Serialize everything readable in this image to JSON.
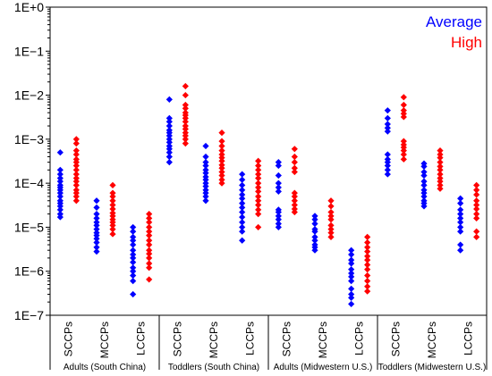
{
  "chart_data": {
    "type": "scatter",
    "title": "",
    "xlabel": "",
    "ylabel": "",
    "yscale": "log",
    "ylim": [
      1e-07,
      1
    ],
    "y_tick_labels": [
      "1E+0",
      "1E−1",
      "1E−2",
      "1E−3",
      "1E−4",
      "1E−5",
      "1E−6",
      "1E−7"
    ],
    "groups": [
      "Adults (South China)",
      "Toddlers (South China)",
      "Adults (Midwestern U.S.)",
      "Toddlers (Midwestern U.S.)"
    ],
    "categories": [
      "SCCPs",
      "MCCPs",
      "LCCPs"
    ],
    "legend": {
      "position": "top-right",
      "entries": [
        "Average",
        "High"
      ]
    },
    "colors": {
      "Average": "#0000ff",
      "High": "#ff0000"
    },
    "series": [
      {
        "name": "Average",
        "data": [
          {
            "group": 0,
            "category": 0,
            "values": [
              0.0005,
              0.0002,
              0.00016,
              0.00013,
              0.00011,
              9e-05,
              8e-05,
              7e-05,
              6e-05,
              5e-05,
              4e-05,
              3.5e-05,
              3e-05,
              2.5e-05,
              2e-05,
              1.7e-05
            ]
          },
          {
            "group": 0,
            "category": 1,
            "values": [
              4e-05,
              2.8e-05,
              2e-05,
              1.6e-05,
              1.3e-05,
              1.1e-05,
              9e-06,
              7.5e-06,
              6.5e-06,
              5.5e-06,
              4.5e-06,
              3.5e-06,
              2.8e-06
            ]
          },
          {
            "group": 0,
            "category": 2,
            "values": [
              1e-05,
              8e-06,
              6e-06,
              5e-06,
              4e-06,
              3e-06,
              2.4e-06,
              2e-06,
              1.6e-06,
              1.2e-06,
              1e-06,
              8e-07,
              6e-07,
              3e-07
            ]
          },
          {
            "group": 1,
            "category": 0,
            "values": [
              0.008,
              0.003,
              0.0025,
              0.002,
              0.0016,
              0.0014,
              0.0012,
              0.001,
              0.00085,
              0.0007,
              0.0006,
              0.0005,
              0.0004,
              0.0003
            ]
          },
          {
            "group": 1,
            "category": 1,
            "values": [
              0.0007,
              0.0004,
              0.0003,
              0.00025,
              0.0002,
              0.00017,
              0.00014,
              0.00012,
              0.0001,
              8.5e-05,
              7e-05,
              6e-05,
              5e-05,
              4e-05
            ]
          },
          {
            "group": 1,
            "category": 2,
            "values": [
              0.00016,
              0.00012,
              9e-05,
              7e-05,
              5.5e-05,
              4.5e-05,
              3.5e-05,
              2.8e-05,
              2.2e-05,
              1.7e-05,
              1.3e-05,
              1e-05,
              8e-06,
              5e-06
            ]
          },
          {
            "group": 2,
            "category": 0,
            "values": [
              0.0003,
              0.00025,
              0.00015,
              0.0001,
              8e-05,
              6.5e-05,
              2.5e-05,
              2.2e-05,
              1.8e-05,
              1.5e-05,
              1.2e-05,
              1e-05
            ]
          },
          {
            "group": 2,
            "category": 1,
            "values": [
              1.8e-05,
              1.5e-05,
              1.2e-05,
              9e-06,
              8e-06,
              6e-06,
              5e-06,
              4e-06,
              3.5e-06,
              3e-06
            ]
          },
          {
            "group": 2,
            "category": 2,
            "values": [
              3e-06,
              2.4e-06,
              1.8e-06,
              1.5e-06,
              1.1e-06,
              9e-07,
              7.5e-07,
              6e-07,
              4e-07,
              3e-07,
              2.5e-07,
              1.8e-07
            ]
          },
          {
            "group": 3,
            "category": 0,
            "values": [
              0.0045,
              0.003,
              0.0022,
              0.0018,
              0.0015,
              0.00045,
              0.00035,
              0.0003,
              0.00025,
              0.0002,
              0.00016
            ]
          },
          {
            "group": 3,
            "category": 1,
            "values": [
              0.00028,
              0.00024,
              0.00018,
              0.00015,
              0.00011,
              9e-05,
              7e-05,
              6e-05,
              5e-05,
              4e-05,
              3.5e-05,
              3e-05
            ]
          },
          {
            "group": 3,
            "category": 2,
            "values": [
              4.5e-05,
              3.5e-05,
              2.5e-05,
              2e-05,
              1.6e-05,
              1.3e-05,
              1e-05,
              8e-06,
              4e-06,
              3e-06
            ]
          }
        ]
      },
      {
        "name": "High",
        "data": [
          {
            "group": 0,
            "category": 0,
            "values": [
              0.001,
              0.0008,
              0.00055,
              0.00045,
              0.00035,
              0.0003,
              0.00025,
              0.0002,
              0.00016,
              0.00013,
              0.00011,
              9e-05,
              7e-05,
              6e-05,
              5e-05,
              4e-05
            ]
          },
          {
            "group": 0,
            "category": 1,
            "values": [
              9e-05,
              6e-05,
              5e-05,
              4e-05,
              3.2e-05,
              2.6e-05,
              2.1e-05,
              1.8e-05,
              1.5e-05,
              1.3e-05,
              1.1e-05,
              9e-06,
              7e-06
            ]
          },
          {
            "group": 0,
            "category": 2,
            "values": [
              2e-05,
              1.6e-05,
              1.3e-05,
              1e-05,
              8e-06,
              6.5e-06,
              5e-06,
              4e-06,
              3e-06,
              2.5e-06,
              2e-06,
              1.5e-06,
              1.2e-06,
              6.5e-07
            ]
          },
          {
            "group": 1,
            "category": 0,
            "values": [
              0.016,
              0.01,
              0.006,
              0.005,
              0.004,
              0.0035,
              0.003,
              0.0025,
              0.002,
              0.0017,
              0.0014,
              0.0012,
              0.001,
              0.0008
            ]
          },
          {
            "group": 1,
            "category": 1,
            "values": [
              0.0014,
              0.0009,
              0.0007,
              0.00055,
              0.00045,
              0.00038,
              0.00032,
              0.00026,
              0.00022,
              0.00018,
              0.00015,
              0.00012,
              0.0001
            ]
          },
          {
            "group": 1,
            "category": 2,
            "values": [
              0.00032,
              0.00025,
              0.0002,
              0.00016,
              0.00013,
              0.0001,
              8e-05,
              6.5e-05,
              5e-05,
              4e-05,
              3.2e-05,
              2.5e-05,
              2e-05,
              1e-05
            ]
          },
          {
            "group": 2,
            "category": 0,
            "values": [
              0.0006,
              0.0004,
              0.0003,
              0.00022,
              0.00018,
              6e-05,
              5e-05,
              4e-05,
              3.2e-05,
              2.6e-05,
              2.2e-05
            ]
          },
          {
            "group": 2,
            "category": 1,
            "values": [
              4e-05,
              3e-05,
              2.2e-05,
              1.8e-05,
              1.5e-05,
              1.1e-05,
              9e-06,
              7.5e-06,
              6e-06
            ]
          },
          {
            "group": 2,
            "category": 2,
            "values": [
              6e-06,
              4.5e-06,
              3.5e-06,
              2.8e-06,
              2.2e-06,
              1.8e-06,
              1.4e-06,
              1.1e-06,
              8e-07,
              6e-07,
              4.5e-07,
              3.5e-07
            ]
          },
          {
            "group": 3,
            "category": 0,
            "values": [
              0.009,
              0.006,
              0.0045,
              0.0038,
              0.0032,
              0.0009,
              0.00075,
              0.00065,
              0.00055,
              0.00045,
              0.00035
            ]
          },
          {
            "group": 3,
            "category": 1,
            "values": [
              0.00055,
              0.00045,
              0.00038,
              0.0003,
              0.00024,
              0.0002,
              0.00016,
              0.00013,
              0.00011,
              9e-05,
              7.5e-05
            ]
          },
          {
            "group": 3,
            "category": 2,
            "values": [
              9e-05,
              7e-05,
              5.5e-05,
              4e-05,
              3.2e-05,
              2.6e-05,
              2e-05,
              1.6e-05,
              8e-06,
              6e-06
            ]
          }
        ]
      }
    ]
  }
}
